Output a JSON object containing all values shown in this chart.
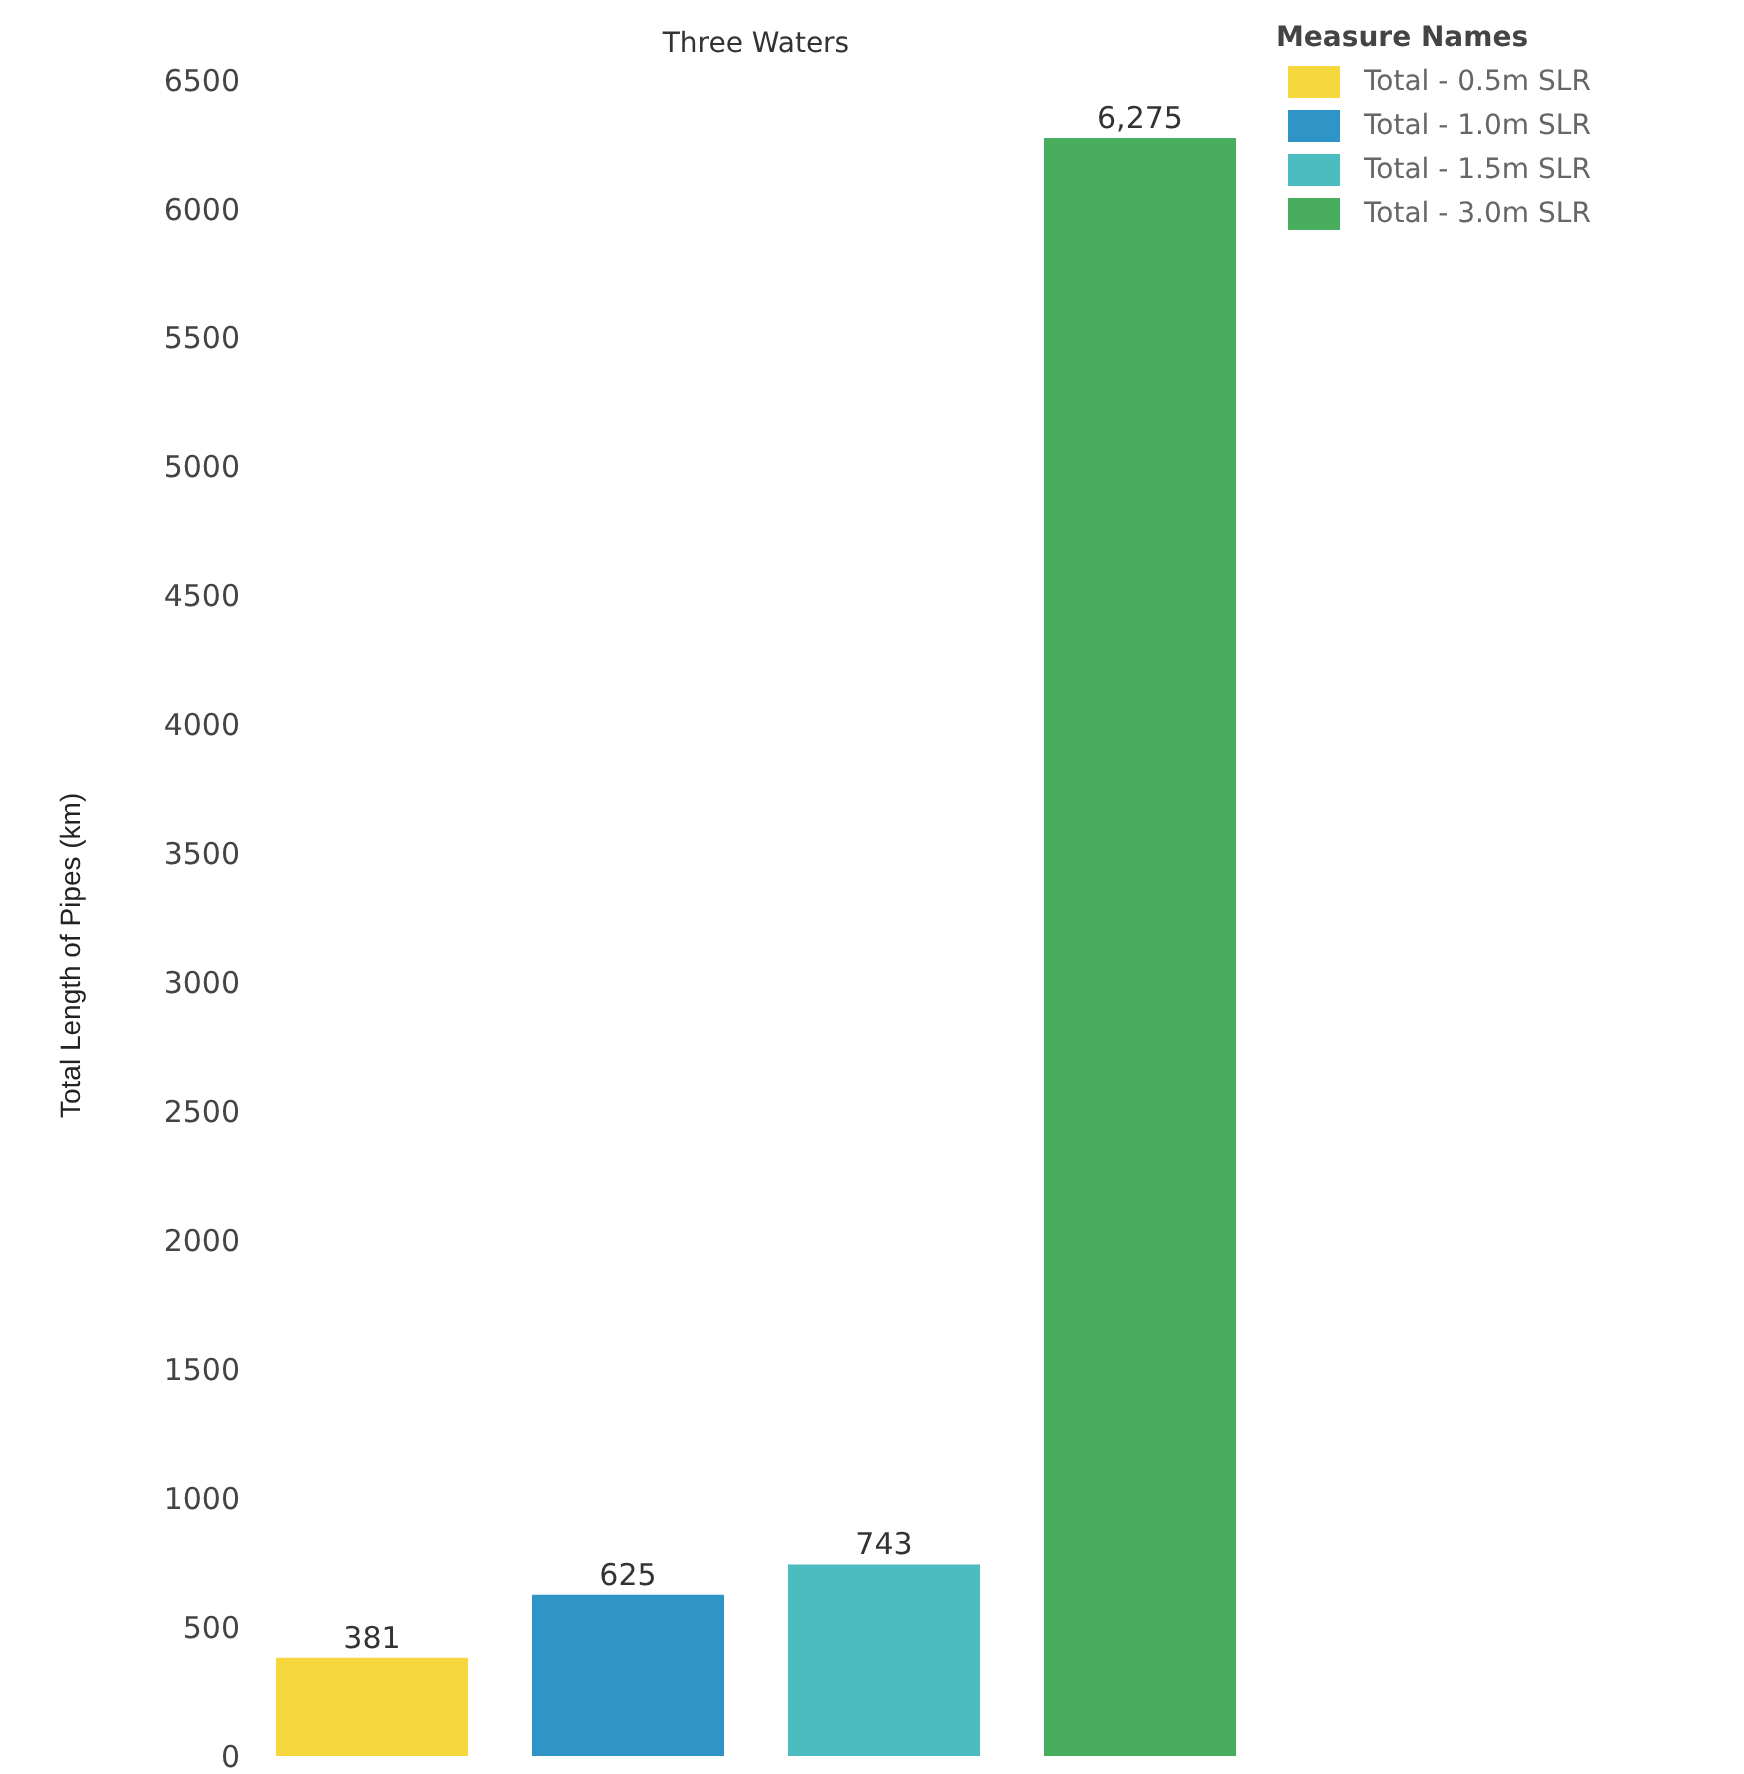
{
  "chart_data": {
    "type": "bar",
    "title": "Three Waters",
    "ylabel": "Total Length of Pipes (km)",
    "legend_title": "Measure Names",
    "categories": [
      null
    ],
    "series": [
      {
        "name": "Total - 0.5m SLR",
        "color": "#f5d63d",
        "values": [
          381
        ],
        "value_labels": [
          "381"
        ]
      },
      {
        "name": "Total - 1.0m SLR",
        "color": "#2e95c6",
        "values": [
          625
        ],
        "value_labels": [
          "625"
        ]
      },
      {
        "name": "Total - 1.5m SLR",
        "color": "#4bbcbf",
        "values": [
          743
        ],
        "value_labels": [
          "743"
        ]
      },
      {
        "name": "Total - 3.0m SLR",
        "color": "#48ae5e",
        "values": [
          6275
        ],
        "value_labels": [
          "6,275"
        ]
      }
    ],
    "ylim": [
      0,
      6500
    ],
    "yticks": [
      0,
      500,
      1000,
      1500,
      2000,
      2500,
      3000,
      3500,
      4000,
      4500,
      5000,
      5500,
      6000,
      6500
    ],
    "grid": false,
    "legend": "top right"
  }
}
